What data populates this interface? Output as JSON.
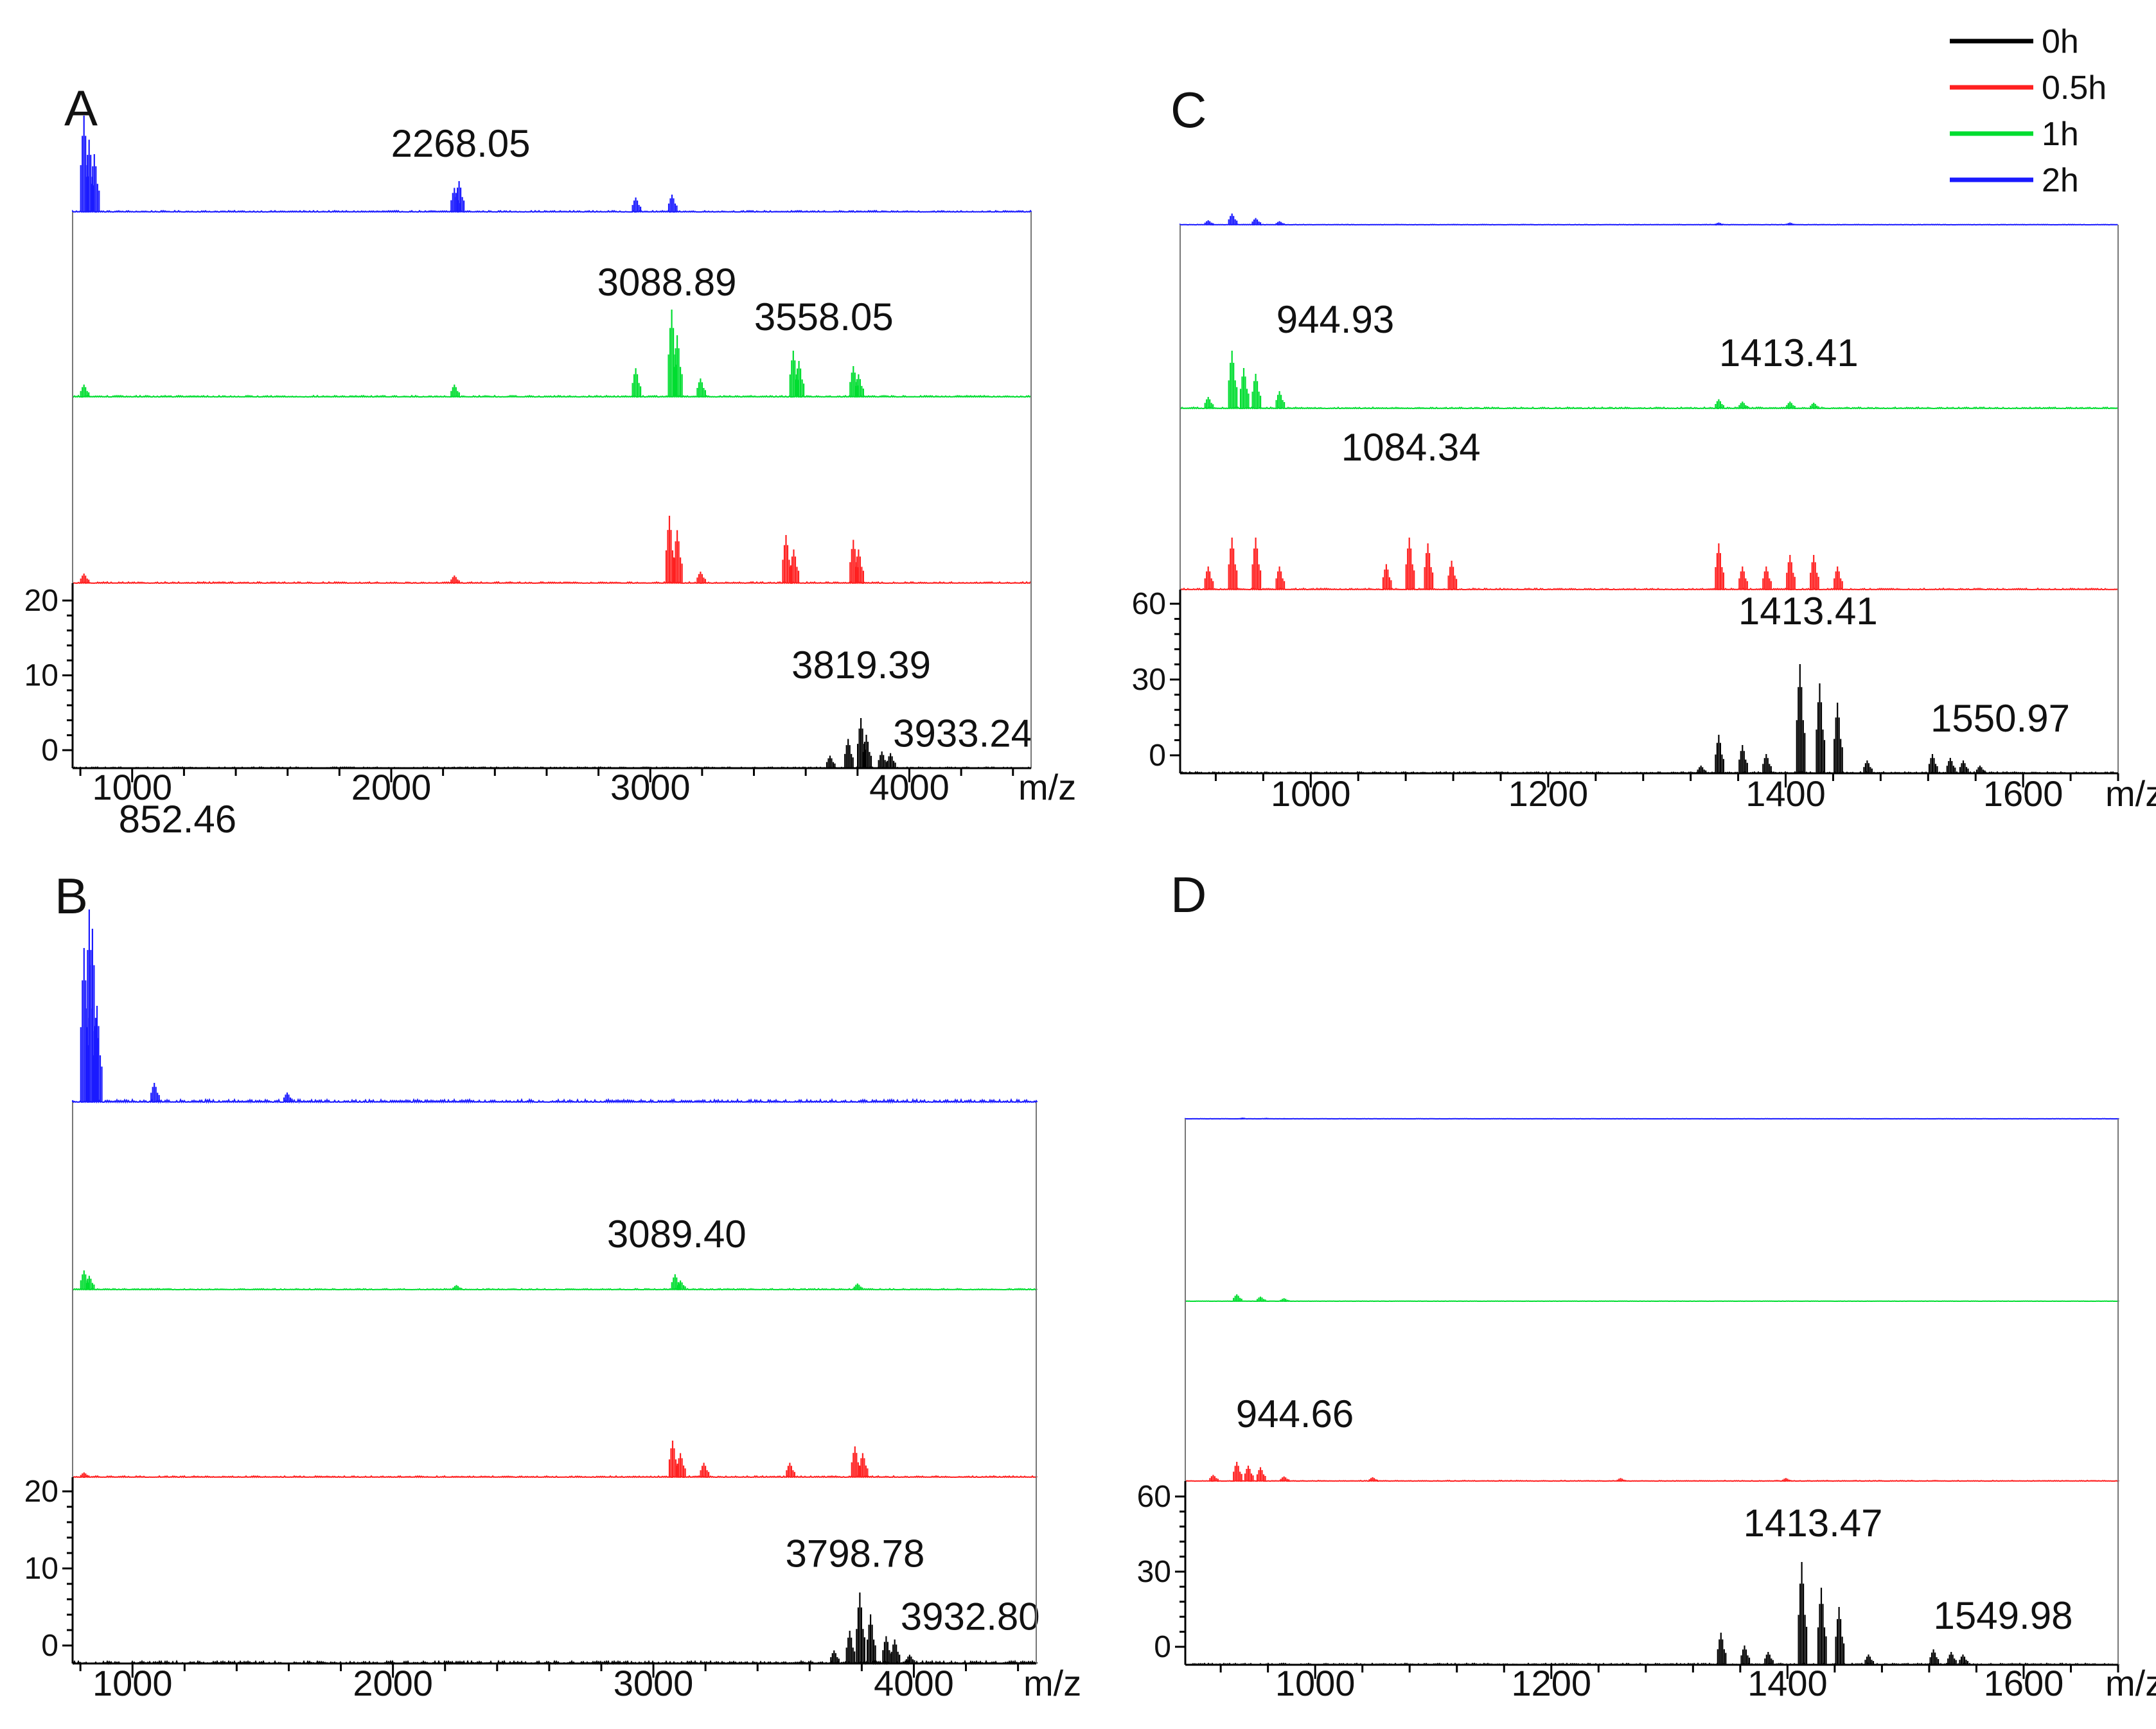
{
  "figure": {
    "legend": [
      {
        "label": "0h",
        "color": "#000000"
      },
      {
        "label": "0.5h",
        "color": "#ff2020"
      },
      {
        "label": "1h",
        "color": "#00dd30"
      },
      {
        "label": "2h",
        "color": "#1a1aff"
      }
    ]
  },
  "chart_data": [
    {
      "panel": "A",
      "type": "line",
      "xlabel": "m/z",
      "xlim": [
        770,
        4470
      ],
      "x_ticks": [
        1000,
        2000,
        3000,
        4000
      ],
      "y_ticks": [
        0,
        10,
        20
      ],
      "ylim_bottom_trace": [
        -1,
        20
      ],
      "series": [
        {
          "name": "2h",
          "color": "#1a1aff",
          "noise": 0.05,
          "peaks": [
            [
              820,
              1.0
            ],
            [
              840,
              0.75
            ],
            [
              860,
              0.6
            ],
            [
              2250,
              0.25
            ],
            [
              2268.05,
              0.32
            ],
            [
              2950,
              0.15
            ],
            [
              3090,
              0.18
            ]
          ],
          "label": {
            "text": "2268.05",
            "x": 2268.05
          }
        },
        {
          "name": "1h",
          "color": "#00dd30",
          "noise": 0.05,
          "peaks": [
            [
              820,
              0.12
            ],
            [
              2250,
              0.12
            ],
            [
              2950,
              0.28
            ],
            [
              3088.89,
              0.85
            ],
            [
              3110,
              0.6
            ],
            [
              3200,
              0.18
            ],
            [
              3558.05,
              0.45
            ],
            [
              3580,
              0.35
            ],
            [
              3790,
              0.3
            ],
            [
              3810,
              0.22
            ]
          ],
          "label": {
            "text": "3088.89",
            "x": 3088.89
          },
          "label2": {
            "text": "3558.05",
            "x": 3558.05
          }
        },
        {
          "name": "0.5h",
          "color": "#ff2020",
          "noise": 0.05,
          "peaks": [
            [
              820,
              0.1
            ],
            [
              2250,
              0.08
            ],
            [
              3080,
              0.7
            ],
            [
              3110,
              0.55
            ],
            [
              3200,
              0.12
            ],
            [
              3530,
              0.5
            ],
            [
              3560,
              0.35
            ],
            [
              3790,
              0.45
            ],
            [
              3810,
              0.35
            ]
          ]
        },
        {
          "name": "0h",
          "color": "#000000",
          "noise": 0.05,
          "peaks": [
            [
              3700,
              0.15
            ],
            [
              3770,
              0.35
            ],
            [
              3819.39,
              0.6
            ],
            [
              3840,
              0.4
            ],
            [
              3900,
              0.2
            ],
            [
              3933.24,
              0.18
            ]
          ],
          "label": {
            "text": "3819.39",
            "x": 3819.39
          },
          "label2": {
            "text": "3933.24",
            "x": 3933.24
          }
        }
      ]
    },
    {
      "panel": "B",
      "type": "line",
      "xlabel": "m/z",
      "xlim": [
        770,
        4470
      ],
      "x_ticks": [
        1000,
        2000,
        3000,
        4000
      ],
      "y_ticks": [
        0,
        10,
        20
      ],
      "ylim_bottom_trace": [
        -1,
        20
      ],
      "series": [
        {
          "name": "2h",
          "color": "#1a1aff",
          "noise": 0.05,
          "peaks": [
            [
              820,
              0.8
            ],
            [
              840,
              1.0
            ],
            [
              852.46,
              0.9
            ],
            [
              870,
              0.5
            ],
            [
              1090,
              0.1
            ],
            [
              1600,
              0.05
            ]
          ],
          "label": {
            "text": "852.46",
            "x": 852.46
          }
        },
        {
          "name": "1h",
          "color": "#00dd30",
          "noise": 0.05,
          "peaks": [
            [
              820,
              0.25
            ],
            [
              840,
              0.18
            ],
            [
              2250,
              0.06
            ],
            [
              3089.4,
              0.2
            ],
            [
              3110,
              0.12
            ],
            [
              3790,
              0.08
            ]
          ],
          "label": {
            "text": "3089.40",
            "x": 3089.4
          }
        },
        {
          "name": "0.5h",
          "color": "#ff2020",
          "noise": 0.05,
          "peaks": [
            [
              820,
              0.05
            ],
            [
              3080,
              0.38
            ],
            [
              3110,
              0.25
            ],
            [
              3200,
              0.15
            ],
            [
              3530,
              0.15
            ],
            [
              3780,
              0.32
            ],
            [
              3810,
              0.25
            ]
          ]
        },
        {
          "name": "0h",
          "color": "#000000",
          "noise": 0.08,
          "peaks": [
            [
              3700,
              0.12
            ],
            [
              3760,
              0.3
            ],
            [
              3798.78,
              0.65
            ],
            [
              3840,
              0.45
            ],
            [
              3900,
              0.25
            ],
            [
              3932.8,
              0.22
            ],
            [
              3990,
              0.08
            ]
          ],
          "label": {
            "text": "3798.78",
            "x": 3798.78
          },
          "label2": {
            "text": "3932.80",
            "x": 3932.8
          }
        }
      ]
    },
    {
      "panel": "C",
      "type": "line",
      "xlabel": "m/z",
      "xlim": [
        890,
        1680
      ],
      "x_ticks": [
        1000,
        1200,
        1400,
        1600
      ],
      "y_ticks": [
        0,
        30,
        60
      ],
      "ylim_bottom_trace": [
        -3,
        60
      ],
      "series": [
        {
          "name": "2h",
          "color": "#1a1aff",
          "noise": 0.04,
          "peaks": [
            [
              915,
              0.1
            ],
            [
              935,
              0.25
            ],
            [
              955,
              0.15
            ],
            [
              975,
              0.08
            ],
            [
              1345,
              0.05
            ],
            [
              1405,
              0.05
            ]
          ]
        },
        {
          "name": "1h",
          "color": "#00dd30",
          "noise": 0.04,
          "peaks": [
            [
              915,
              0.1
            ],
            [
              935,
              0.5
            ],
            [
              944.93,
              0.35
            ],
            [
              955,
              0.3
            ],
            [
              975,
              0.15
            ],
            [
              1345,
              0.08
            ],
            [
              1365,
              0.06
            ],
            [
              1405,
              0.06
            ],
            [
              1425,
              0.05
            ]
          ],
          "label": {
            "text": "944.93",
            "x": 944.93
          },
          "label2": {
            "text": "1413.41",
            "x": 1413.41
          }
        },
        {
          "name": "0.5h",
          "color": "#ff2020",
          "noise": 0.04,
          "peaks": [
            [
              915,
              0.2
            ],
            [
              935,
              0.45
            ],
            [
              955,
              0.45
            ],
            [
              975,
              0.2
            ],
            [
              1065,
              0.22
            ],
            [
              1084.34,
              0.45
            ],
            [
              1100,
              0.4
            ],
            [
              1120,
              0.25
            ],
            [
              1345,
              0.4
            ],
            [
              1365,
              0.2
            ],
            [
              1385,
              0.2
            ],
            [
              1405,
              0.3
            ],
            [
              1425,
              0.3
            ],
            [
              1445,
              0.2
            ]
          ],
          "label": {
            "text": "1084.34",
            "x": 1084.34
          }
        },
        {
          "name": "0h",
          "color": "#000000",
          "noise": 0.04,
          "peaks": [
            [
              1330,
              0.06
            ],
            [
              1345,
              0.3
            ],
            [
              1365,
              0.22
            ],
            [
              1385,
              0.15
            ],
            [
              1413.41,
              0.85
            ],
            [
              1430,
              0.7
            ],
            [
              1445,
              0.55
            ],
            [
              1470,
              0.1
            ],
            [
              1525,
              0.15
            ],
            [
              1540,
              0.12
            ],
            [
              1550.97,
              0.1
            ],
            [
              1565,
              0.06
            ]
          ],
          "label": {
            "text": "1413.41",
            "x": 1413.41
          },
          "label2": {
            "text": "1550.97",
            "x": 1550.97
          }
        }
      ]
    },
    {
      "panel": "D",
      "type": "line",
      "xlabel": "m/z",
      "xlim": [
        890,
        1680
      ],
      "x_ticks": [
        1000,
        1200,
        1400,
        1600
      ],
      "y_ticks": [
        0,
        30,
        60
      ],
      "ylim_bottom_trace": [
        -3,
        60
      ],
      "series": [
        {
          "name": "2h",
          "color": "#1a1aff",
          "noise": 0.03,
          "peaks": [
            [
              940,
              0.05
            ],
            [
              960,
              0.04
            ],
            [
              975,
              0.03
            ]
          ]
        },
        {
          "name": "1h",
          "color": "#00dd30",
          "noise": 0.03,
          "peaks": [
            [
              935,
              0.18
            ],
            [
              955,
              0.12
            ],
            [
              975,
              0.08
            ]
          ]
        },
        {
          "name": "0.5h",
          "color": "#ff2020",
          "noise": 0.03,
          "peaks": [
            [
              915,
              0.08
            ],
            [
              935,
              0.25
            ],
            [
              944.66,
              0.2
            ],
            [
              955,
              0.18
            ],
            [
              975,
              0.06
            ],
            [
              1050,
              0.05
            ],
            [
              1260,
              0.04
            ],
            [
              1400,
              0.04
            ]
          ],
          "label": {
            "text": "944.66",
            "x": 944.66
          }
        },
        {
          "name": "0h",
          "color": "#000000",
          "noise": 0.04,
          "peaks": [
            [
              1345,
              0.25
            ],
            [
              1365,
              0.15
            ],
            [
              1385,
              0.1
            ],
            [
              1413.47,
              0.8
            ],
            [
              1430,
              0.6
            ],
            [
              1445,
              0.45
            ],
            [
              1470,
              0.08
            ],
            [
              1525,
              0.12
            ],
            [
              1540,
              0.1
            ],
            [
              1549.98,
              0.08
            ]
          ],
          "label": {
            "text": "1413.47",
            "x": 1413.47
          },
          "label2": {
            "text": "1549.98",
            "x": 1549.98
          }
        }
      ]
    }
  ]
}
